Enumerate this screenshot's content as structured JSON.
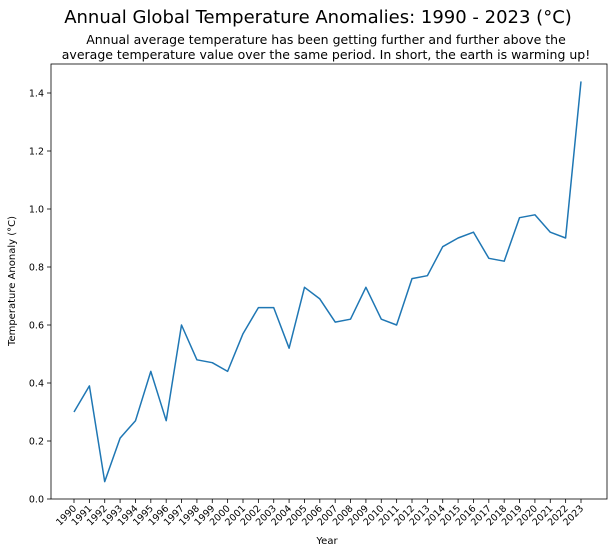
{
  "chart_data": {
    "type": "line",
    "title": "Annual Global Temperature Anomalies: 1990 - 2023 (°C)",
    "subtitle_lines": [
      "Annual average temperature has been getting further and further above the",
      "average temperature value over the same period. In short, the earth is warming up!"
    ],
    "xlabel": "Year",
    "ylabel": "Temperature Anonaly (°C)",
    "ylim": [
      0,
      1.5
    ],
    "yticks": [
      "0.0",
      "0.2",
      "0.4",
      "0.6",
      "0.8",
      "1.0",
      "1.2",
      "1.4"
    ],
    "ytick_values": [
      0,
      0.2,
      0.4,
      0.6,
      0.8,
      1.0,
      1.2,
      1.4
    ],
    "grid": false,
    "line_color": "#1f77b4",
    "x": [
      "1990",
      "1991",
      "1992",
      "1993",
      "1994",
      "1995",
      "1996",
      "1997",
      "1998",
      "1999",
      "2000",
      "2001",
      "2002",
      "2003",
      "2004",
      "2005",
      "2006",
      "2007",
      "2008",
      "2009",
      "2010",
      "2011",
      "2012",
      "2013",
      "2014",
      "2015",
      "2016",
      "2017",
      "2018",
      "2019",
      "2020",
      "2021",
      "2022",
      "2023"
    ],
    "values": [
      0.3,
      0.39,
      0.06,
      0.21,
      0.27,
      0.44,
      0.27,
      0.6,
      0.48,
      0.47,
      0.44,
      0.57,
      0.66,
      0.66,
      0.52,
      0.73,
      0.69,
      0.61,
      0.62,
      0.73,
      0.62,
      0.6,
      0.76,
      0.77,
      0.87,
      0.9,
      0.92,
      0.83,
      0.82,
      0.97,
      0.98,
      0.92,
      0.9,
      1.44
    ]
  }
}
